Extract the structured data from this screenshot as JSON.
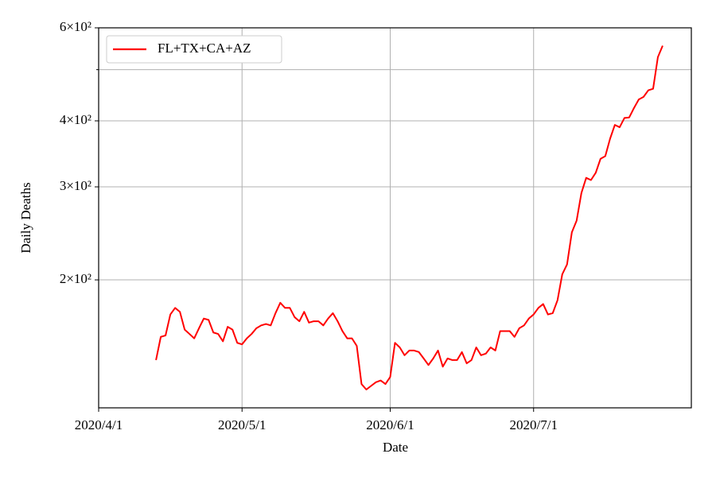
{
  "chart_data": {
    "type": "line",
    "xlabel": "Date",
    "ylabel": "Daily Deaths",
    "x": [
      "2020-04-13",
      "2020-04-14",
      "2020-04-15",
      "2020-04-16",
      "2020-04-17",
      "2020-04-18",
      "2020-04-19",
      "2020-04-20",
      "2020-04-21",
      "2020-04-22",
      "2020-04-23",
      "2020-04-24",
      "2020-04-25",
      "2020-04-26",
      "2020-04-27",
      "2020-04-28",
      "2020-04-29",
      "2020-04-30",
      "2020-05-01",
      "2020-05-02",
      "2020-05-03",
      "2020-05-04",
      "2020-05-05",
      "2020-05-06",
      "2020-05-07",
      "2020-05-08",
      "2020-05-09",
      "2020-05-10",
      "2020-05-11",
      "2020-05-12",
      "2020-05-13",
      "2020-05-14",
      "2020-05-15",
      "2020-05-16",
      "2020-05-17",
      "2020-05-18",
      "2020-05-19",
      "2020-05-20",
      "2020-05-21",
      "2020-05-22",
      "2020-05-23",
      "2020-05-24",
      "2020-05-25",
      "2020-05-26",
      "2020-05-27",
      "2020-05-28",
      "2020-05-29",
      "2020-05-30",
      "2020-05-31",
      "2020-06-01",
      "2020-06-02",
      "2020-06-03",
      "2020-06-04",
      "2020-06-05",
      "2020-06-06",
      "2020-06-07",
      "2020-06-08",
      "2020-06-09",
      "2020-06-10",
      "2020-06-11",
      "2020-06-12",
      "2020-06-13",
      "2020-06-14",
      "2020-06-15",
      "2020-06-16",
      "2020-06-17",
      "2020-06-18",
      "2020-06-19",
      "2020-06-20",
      "2020-06-21",
      "2020-06-22",
      "2020-06-23",
      "2020-06-24",
      "2020-06-25",
      "2020-06-26",
      "2020-06-27",
      "2020-06-28",
      "2020-06-29",
      "2020-06-30",
      "2020-07-01",
      "2020-07-02",
      "2020-07-03",
      "2020-07-04",
      "2020-07-05",
      "2020-07-06",
      "2020-07-07",
      "2020-07-08",
      "2020-07-09",
      "2020-07-10",
      "2020-07-11",
      "2020-07-12",
      "2020-07-13",
      "2020-07-14",
      "2020-07-15",
      "2020-07-16",
      "2020-07-17",
      "2020-07-18",
      "2020-07-19",
      "2020-07-20",
      "2020-07-21",
      "2020-07-22",
      "2020-07-23",
      "2020-07-24",
      "2020-07-25",
      "2020-07-26",
      "2020-07-27",
      "2020-07-28"
    ],
    "series": [
      {
        "name": "FL+TX+CA+AZ",
        "color": "#ff0000",
        "values": [
          141,
          156,
          157,
          172,
          177,
          174,
          161,
          158,
          155,
          162,
          169,
          168,
          159,
          158,
          153,
          163,
          161,
          152,
          151,
          155,
          158,
          162,
          164,
          165,
          164,
          173,
          181,
          177,
          177,
          170,
          167,
          174,
          166,
          167,
          167,
          164,
          169,
          173,
          167,
          160,
          155,
          155,
          150,
          127,
          124,
          126,
          128,
          129,
          127,
          131,
          152,
          149,
          144,
          147,
          147,
          146,
          142,
          138,
          142,
          147,
          137,
          142,
          141,
          141,
          146,
          139,
          141,
          149,
          144,
          145,
          149,
          147,
          160,
          160,
          160,
          156,
          162,
          164,
          169,
          172,
          177,
          180,
          172,
          173,
          183,
          205,
          214,
          246,
          259,
          292,
          312,
          309,
          319,
          339,
          343,
          370,
          393,
          389,
          405,
          406,
          423,
          439,
          444,
          457,
          460,
          528,
          555
        ]
      }
    ],
    "xlim": [
      "2020-04-01",
      "2020-08-03"
    ],
    "xticks": [
      {
        "value": "2020-04-01",
        "label": "2020/4/1"
      },
      {
        "value": "2020-05-01",
        "label": "2020/5/1"
      },
      {
        "value": "2020-06-01",
        "label": "2020/6/1"
      },
      {
        "value": "2020-07-01",
        "label": "2020/7/1"
      }
    ],
    "ylim": [
      114.5,
      600
    ],
    "log_y": true,
    "yticks": [
      {
        "value": 200,
        "label": "2×10²"
      },
      {
        "value": 300,
        "label": "3×10²"
      },
      {
        "value": 400,
        "label": "4×10²"
      },
      {
        "value": 600,
        "label": "6×10²"
      }
    ],
    "minor_yticks": [
      500
    ],
    "grid": true,
    "legend": "upper left"
  }
}
